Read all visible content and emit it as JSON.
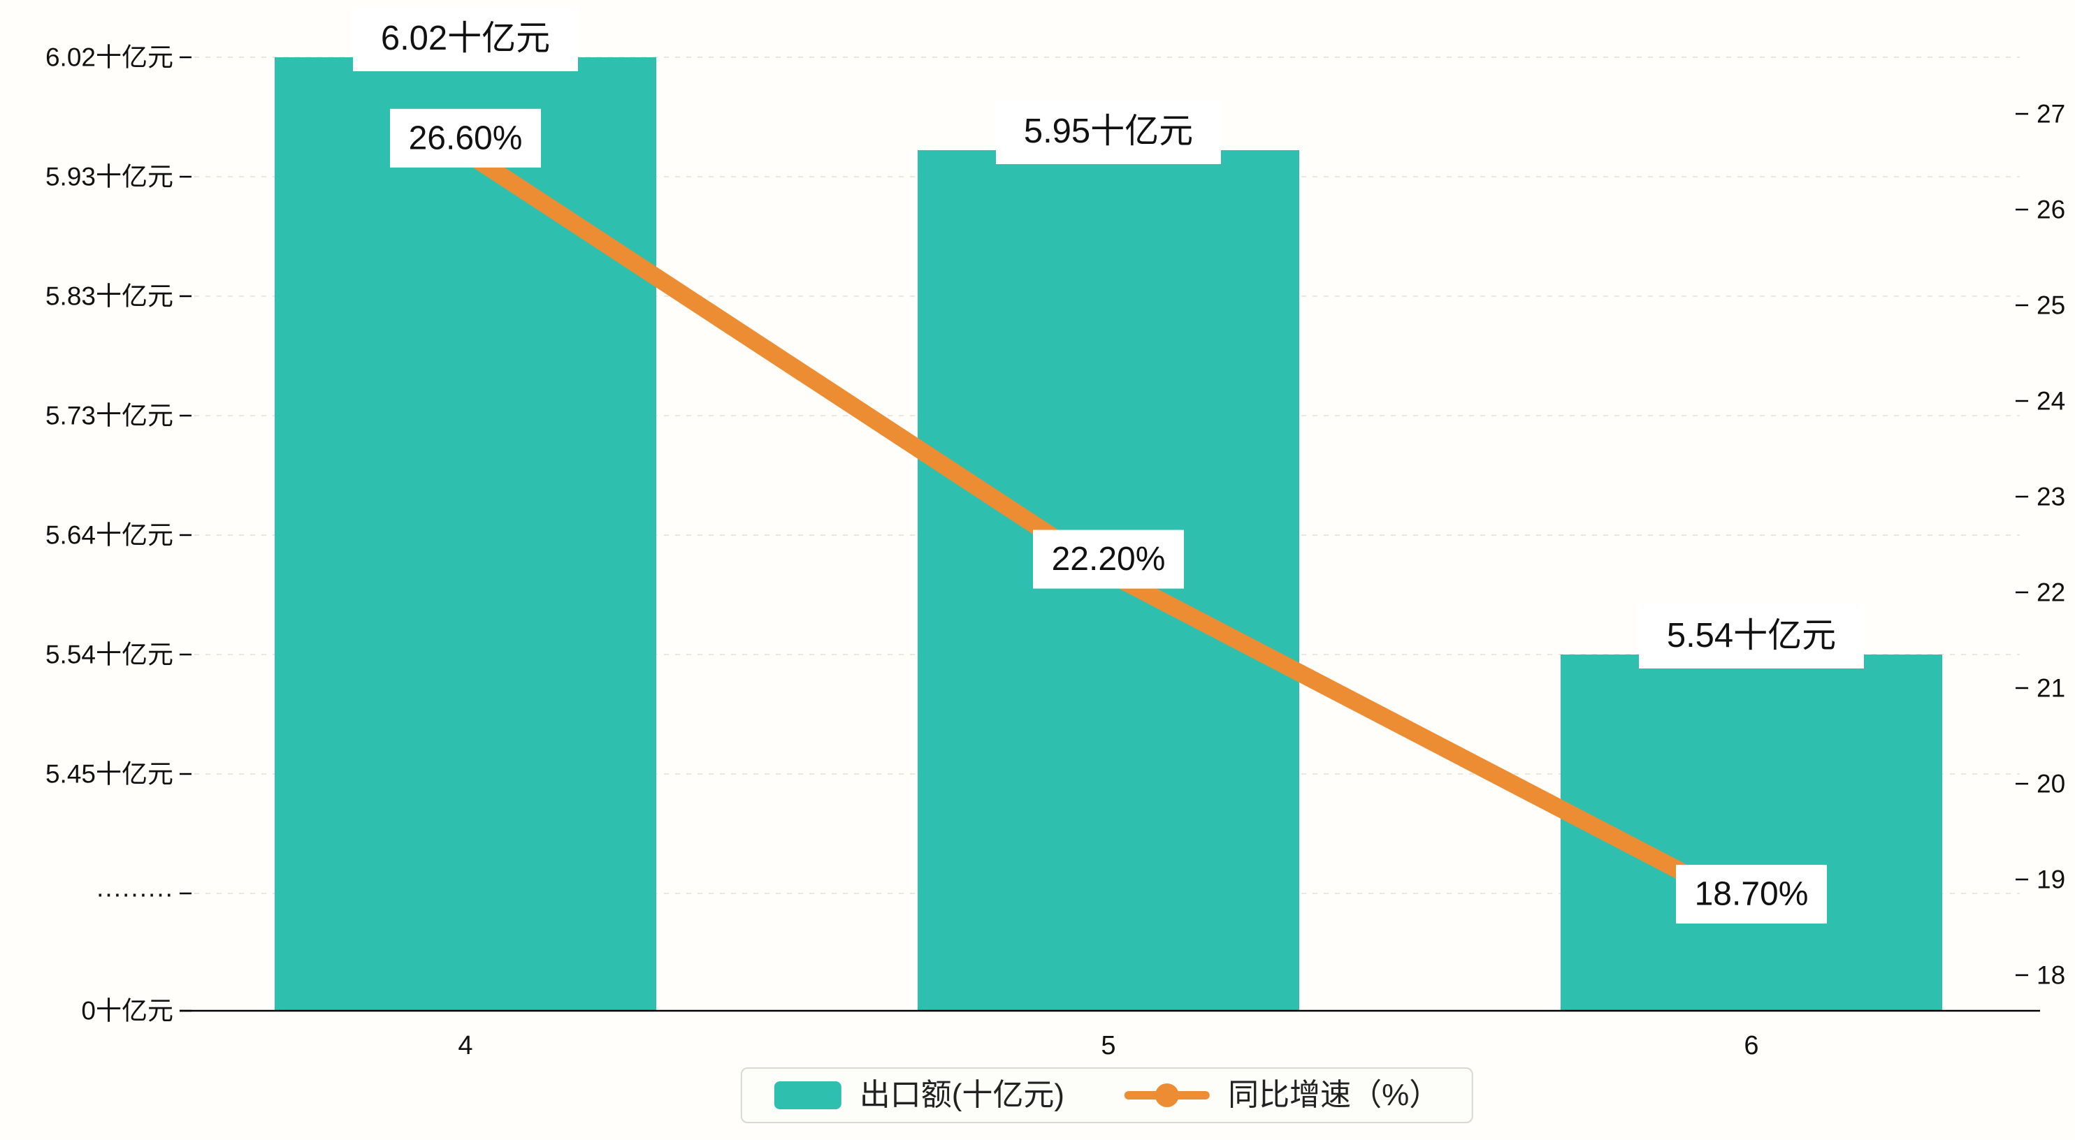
{
  "colors": {
    "bar": "#2FBFAE",
    "line": "#ED8D33",
    "grid": "#eae7e1",
    "axis_line": "#000000",
    "tick": "#000000",
    "text": "#111111",
    "label_bg": "#ffffff",
    "background": "#fffefa",
    "legend_border": "#d9d9d4"
  },
  "chart_data": {
    "type": "bar",
    "subtype": "bar-line-combo",
    "categories": [
      "4",
      "5",
      "6"
    ],
    "series": [
      {
        "name": "出口额(十亿元)",
        "type": "bar",
        "values": [
          6.02,
          5.95,
          5.54
        ],
        "labels": [
          "6.02十亿元",
          "5.95十亿元",
          "5.54十亿元"
        ],
        "color": "#2FBFAE",
        "axis": "left"
      },
      {
        "name": "同比增速（%）",
        "type": "line",
        "values": [
          26.6,
          22.2,
          18.7
        ],
        "labels": [
          "26.60%",
          "22.20%",
          "18.70%"
        ],
        "color": "#ED8D33",
        "axis": "right"
      }
    ],
    "left_axis": {
      "ticks": [
        "6.02十亿元",
        "5.93十亿元",
        "5.83十亿元",
        "5.73十亿元",
        "5.64十亿元",
        "5.54十亿元",
        "5.45十亿元",
        "·········",
        "0十亿元"
      ],
      "tick_values": [
        6.02,
        5.93,
        5.83,
        5.73,
        5.64,
        5.54,
        5.45,
        null,
        0
      ],
      "broken": true
    },
    "right_axis": {
      "ticks": [
        "27",
        "26",
        "25",
        "24",
        "23",
        "22",
        "21",
        "20",
        "19",
        "18"
      ],
      "min": 18,
      "max": 27
    },
    "grid": "dashed-horizontal",
    "legend_position": "bottom",
    "legend": [
      {
        "label": "出口额(十亿元)",
        "marker": "bar"
      },
      {
        "label": "同比增速（%）",
        "marker": "line"
      }
    ]
  }
}
